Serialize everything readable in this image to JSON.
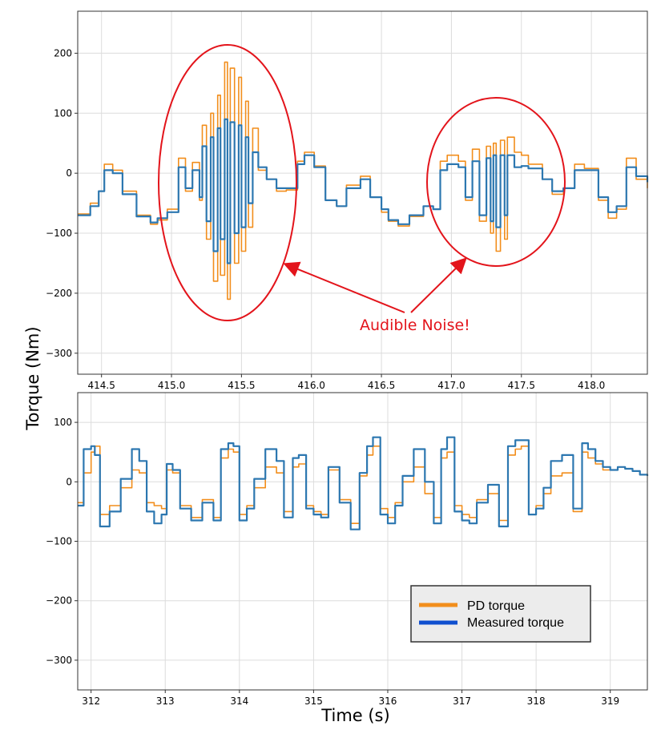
{
  "colors": {
    "pd_torque": "#f28e1c",
    "measured_torque": "#2c77b0",
    "annotation": "#e3141b",
    "grid": "#dcdcdc",
    "legend_bg": "#ececec"
  },
  "chart_data": [
    {
      "type": "line",
      "id": "top",
      "xlim": [
        414.33,
        418.4
      ],
      "ylim": [
        -335,
        270
      ],
      "xticks": [
        414.5,
        415.0,
        415.5,
        416.0,
        416.5,
        417.0,
        417.5,
        418.0
      ],
      "xtick_labels": [
        "414.5",
        "415.0",
        "415.5",
        "416.0",
        "416.5",
        "417.0",
        "417.5",
        "418.0"
      ],
      "yticks": [
        200,
        100,
        0,
        -100,
        -200,
        -300
      ],
      "ytick_labels": [
        "200",
        "100",
        "0",
        "−100",
        "−200",
        "−300"
      ],
      "grid": true,
      "series": [
        {
          "name": "PD torque",
          "color": "#f28e1c",
          "x": [
            414.33,
            414.42,
            414.48,
            414.52,
            414.58,
            414.65,
            414.75,
            414.85,
            414.9,
            414.97,
            415.05,
            415.1,
            415.15,
            415.2,
            415.22,
            415.25,
            415.28,
            415.3,
            415.33,
            415.35,
            415.38,
            415.4,
            415.42,
            415.45,
            415.48,
            415.5,
            415.53,
            415.55,
            415.58,
            415.62,
            415.68,
            415.75,
            415.82,
            415.9,
            415.95,
            416.02,
            416.1,
            416.18,
            416.25,
            416.35,
            416.42,
            416.5,
            416.55,
            416.62,
            416.7,
            416.8,
            416.87,
            416.92,
            416.97,
            417.05,
            417.1,
            417.15,
            417.2,
            417.25,
            417.28,
            417.3,
            417.32,
            417.35,
            417.38,
            417.4,
            417.45,
            417.5,
            417.55,
            417.65,
            417.72,
            417.8,
            417.88,
            417.95,
            418.05,
            418.12,
            418.18,
            418.25,
            418.32,
            418.4
          ],
          "y": [
            -68,
            -50,
            -30,
            15,
            5,
            -30,
            -70,
            -85,
            -78,
            -60,
            25,
            -30,
            18,
            -45,
            80,
            -110,
            100,
            -180,
            130,
            -170,
            185,
            -210,
            175,
            -150,
            160,
            -130,
            120,
            -90,
            75,
            5,
            -10,
            -30,
            -28,
            20,
            35,
            12,
            -45,
            -55,
            -20,
            -5,
            -40,
            -65,
            -80,
            -88,
            -72,
            -55,
            -60,
            20,
            30,
            20,
            -45,
            40,
            -80,
            45,
            -100,
            50,
            -130,
            55,
            -110,
            60,
            35,
            30,
            15,
            -10,
            -35,
            -25,
            15,
            8,
            -45,
            -75,
            -60,
            25,
            -10,
            -25
          ]
        },
        {
          "name": "Measured torque",
          "color": "#2c77b0",
          "x": [
            414.33,
            414.42,
            414.48,
            414.52,
            414.58,
            414.65,
            414.75,
            414.85,
            414.9,
            414.97,
            415.05,
            415.1,
            415.15,
            415.2,
            415.22,
            415.25,
            415.28,
            415.3,
            415.33,
            415.35,
            415.38,
            415.4,
            415.42,
            415.45,
            415.48,
            415.5,
            415.53,
            415.55,
            415.58,
            415.62,
            415.68,
            415.75,
            415.82,
            415.9,
            415.95,
            416.02,
            416.1,
            416.18,
            416.25,
            416.35,
            416.42,
            416.5,
            416.55,
            416.62,
            416.7,
            416.8,
            416.87,
            416.92,
            416.97,
            417.05,
            417.1,
            417.15,
            417.2,
            417.25,
            417.28,
            417.3,
            417.32,
            417.35,
            417.38,
            417.4,
            417.45,
            417.5,
            417.55,
            417.65,
            417.72,
            417.8,
            417.88,
            417.95,
            418.05,
            418.12,
            418.18,
            418.25,
            418.32,
            418.4
          ],
          "y": [
            -70,
            -55,
            -30,
            5,
            0,
            -35,
            -72,
            -82,
            -75,
            -65,
            10,
            -25,
            5,
            -40,
            45,
            -80,
            60,
            -130,
            75,
            -110,
            90,
            -150,
            85,
            -100,
            80,
            -90,
            60,
            -50,
            35,
            10,
            -10,
            -25,
            -25,
            15,
            30,
            10,
            -45,
            -55,
            -25,
            -10,
            -40,
            -60,
            -78,
            -85,
            -70,
            -55,
            -60,
            5,
            15,
            10,
            -40,
            20,
            -70,
            25,
            -80,
            30,
            -90,
            30,
            -70,
            30,
            10,
            12,
            8,
            -10,
            -30,
            -25,
            5,
            5,
            -40,
            -65,
            -55,
            10,
            -5,
            -15
          ]
        }
      ],
      "annotations": [
        {
          "text": "Audible Noise!",
          "color": "#e3141b"
        }
      ]
    },
    {
      "type": "line",
      "id": "bottom",
      "xlim": [
        311.82,
        319.5
      ],
      "ylim": [
        -350,
        150
      ],
      "xticks": [
        312,
        313,
        314,
        315,
        316,
        317,
        318,
        319
      ],
      "xtick_labels": [
        "312",
        "313",
        "314",
        "315",
        "316",
        "317",
        "318",
        "319"
      ],
      "yticks": [
        100,
        0,
        -100,
        -200,
        -300
      ],
      "ytick_labels": [
        "100",
        "0",
        "−100",
        "−200",
        "−300"
      ],
      "xlabel": "Time (s)",
      "grid": true,
      "legend_position": "lower-right",
      "series": [
        {
          "name": "PD torque",
          "color": "#f28e1c",
          "x": [
            311.82,
            311.9,
            312.0,
            312.05,
            312.12,
            312.25,
            312.4,
            312.55,
            312.65,
            312.75,
            312.85,
            312.95,
            313.02,
            313.1,
            313.2,
            313.35,
            313.5,
            313.65,
            313.75,
            313.85,
            313.92,
            314.0,
            314.1,
            314.2,
            314.35,
            314.5,
            314.6,
            314.72,
            314.8,
            314.9,
            315.0,
            315.1,
            315.2,
            315.35,
            315.5,
            315.62,
            315.72,
            315.8,
            315.9,
            316.0,
            316.1,
            316.2,
            316.35,
            316.5,
            316.62,
            316.72,
            316.8,
            316.9,
            317.0,
            317.1,
            317.2,
            317.35,
            317.5,
            317.62,
            317.72,
            317.8,
            317.9,
            318.0,
            318.1,
            318.2,
            318.35,
            318.5,
            318.62,
            318.7,
            318.8,
            318.9,
            319.0,
            319.1,
            319.2,
            319.3,
            319.4,
            319.5
          ],
          "y": [
            -35,
            15,
            50,
            60,
            -55,
            -40,
            -10,
            20,
            15,
            -35,
            -40,
            -45,
            20,
            15,
            -40,
            -60,
            -30,
            -60,
            40,
            55,
            50,
            -55,
            -40,
            -10,
            25,
            15,
            -50,
            25,
            30,
            -40,
            -50,
            -55,
            20,
            -30,
            -70,
            10,
            45,
            60,
            -45,
            -60,
            -35,
            0,
            25,
            -20,
            -60,
            40,
            50,
            -40,
            -55,
            -60,
            -30,
            -20,
            -65,
            45,
            55,
            60,
            -55,
            -40,
            -20,
            10,
            15,
            -50,
            50,
            40,
            30,
            20,
            20,
            25,
            22,
            18,
            12,
            10
          ]
        },
        {
          "name": "Measured torque",
          "color": "#2c77b0",
          "x": [
            311.82,
            311.9,
            312.0,
            312.05,
            312.12,
            312.25,
            312.4,
            312.55,
            312.65,
            312.75,
            312.85,
            312.95,
            313.02,
            313.1,
            313.2,
            313.35,
            313.5,
            313.65,
            313.75,
            313.85,
            313.92,
            314.0,
            314.1,
            314.2,
            314.35,
            314.5,
            314.6,
            314.72,
            314.8,
            314.9,
            315.0,
            315.1,
            315.2,
            315.35,
            315.5,
            315.62,
            315.72,
            315.8,
            315.9,
            316.0,
            316.1,
            316.2,
            316.35,
            316.5,
            316.62,
            316.72,
            316.8,
            316.9,
            317.0,
            317.1,
            317.2,
            317.35,
            317.5,
            317.62,
            317.72,
            317.8,
            317.9,
            318.0,
            318.1,
            318.2,
            318.35,
            318.5,
            318.62,
            318.7,
            318.8,
            318.9,
            319.0,
            319.1,
            319.2,
            319.3,
            319.4,
            319.5
          ],
          "y": [
            -40,
            55,
            60,
            45,
            -75,
            -50,
            5,
            55,
            35,
            -50,
            -70,
            -55,
            30,
            20,
            -45,
            -65,
            -35,
            -65,
            55,
            65,
            60,
            -65,
            -45,
            5,
            55,
            35,
            -60,
            40,
            45,
            -45,
            -55,
            -60,
            25,
            -35,
            -80,
            15,
            60,
            75,
            -55,
            -70,
            -40,
            10,
            55,
            0,
            -70,
            55,
            75,
            -50,
            -65,
            -70,
            -35,
            -5,
            -75,
            60,
            70,
            70,
            -55,
            -45,
            -10,
            35,
            45,
            -45,
            65,
            55,
            35,
            25,
            20,
            25,
            22,
            18,
            12,
            10
          ]
        }
      ]
    }
  ],
  "shared": {
    "ylabel": "Torque (Nm)"
  }
}
